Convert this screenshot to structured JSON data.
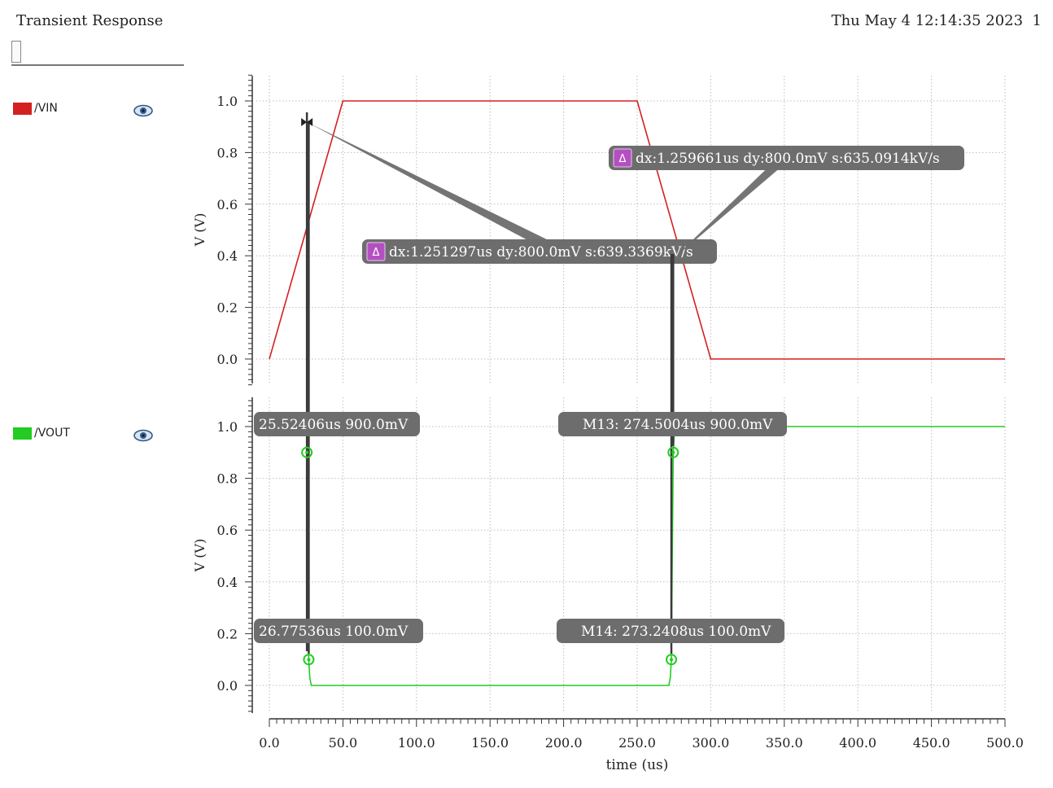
{
  "window": {
    "title": "Transient Response",
    "timestamp": "Thu May 4 12:14:35 2023",
    "page_number": "1"
  },
  "colors": {
    "vin": "#d42020",
    "vout": "#22cc22",
    "marker_fill": "#6d6d6d",
    "delta_badge": "#b44fc2",
    "grid": "#bdbdbd"
  },
  "icons": {
    "visibility": "eye-icon",
    "delta": "delta-icon"
  },
  "chart_data": [
    {
      "type": "line",
      "title": "",
      "xlabel": "time (us)",
      "ylabel": "V (V)",
      "xlim": [
        0,
        500
      ],
      "ylim": [
        -0.1,
        1.1
      ],
      "x_ticks": [
        0,
        50,
        100,
        150,
        200,
        250,
        300,
        350,
        400,
        450,
        500
      ],
      "x_tick_labels": [
        "0.0",
        "50.0",
        "100.0",
        "150.0",
        "200.0",
        "250.0",
        "300.0",
        "350.0",
        "400.0",
        "450.0",
        "500.0"
      ],
      "y_ticks": [
        0,
        0.2,
        0.4,
        0.6,
        0.8,
        1.0
      ],
      "y_tick_labels": [
        "0.0",
        "0.2",
        "0.4",
        "0.6",
        "0.8",
        "1.0"
      ],
      "grid": true,
      "series": [
        {
          "name": "/VIN",
          "color": "#d42020",
          "x": [
            0,
            50,
            250,
            300,
            500
          ],
          "y": [
            0,
            1.0,
            1.0,
            0,
            0
          ]
        }
      ],
      "annotations": [
        {
          "kind": "delta",
          "text": "dx:1.251297us dy:800.0mV s:639.3369kV/s",
          "x1": 25.524,
          "y1": 0.9,
          "x2": 26.775,
          "y2": 0.1
        },
        {
          "kind": "delta",
          "text": "dx:1.259661us dy:800.0mV s:635.0914kV/s",
          "x1": 274.5,
          "y1": 0.9,
          "x2": 273.24,
          "y2": 0.1
        }
      ]
    },
    {
      "type": "line",
      "title": "",
      "xlabel": "time (us)",
      "ylabel": "V (V)",
      "xlim": [
        0,
        500
      ],
      "ylim": [
        -0.1,
        1.1
      ],
      "x_ticks": [
        0,
        50,
        100,
        150,
        200,
        250,
        300,
        350,
        400,
        450,
        500
      ],
      "x_tick_labels": [
        "0.0",
        "50.0",
        "100.0",
        "150.0",
        "200.0",
        "250.0",
        "300.0",
        "350.0",
        "400.0",
        "450.0",
        "500.0"
      ],
      "y_ticks": [
        0,
        0.2,
        0.4,
        0.6,
        0.8,
        1.0
      ],
      "y_tick_labels": [
        "0.0",
        "0.2",
        "0.4",
        "0.6",
        "0.8",
        "1.0"
      ],
      "grid": true,
      "series": [
        {
          "name": "/VOUT",
          "color": "#22cc22",
          "x": [
            24.5,
            25.524,
            26.775,
            27.5,
            28.5,
            271.5,
            272.5,
            273.24,
            274.5,
            275.5,
            500
          ],
          "y": [
            0.9,
            0.9,
            0.1,
            0.03,
            0.0,
            0.0,
            0.03,
            0.1,
            0.9,
            1.0,
            1.0
          ]
        }
      ],
      "markers": [
        {
          "label": "25.52406us 900.0mV",
          "x": 25.524,
          "y": 0.9
        },
        {
          "label": "26.77536us 100.0mV",
          "x": 26.775,
          "y": 0.1
        },
        {
          "label": "M13: 274.5004us 900.0mV",
          "x": 274.5,
          "y": 0.9
        },
        {
          "label": "M14: 273.2408us 100.0mV",
          "x": 273.24,
          "y": 0.1
        }
      ]
    }
  ]
}
